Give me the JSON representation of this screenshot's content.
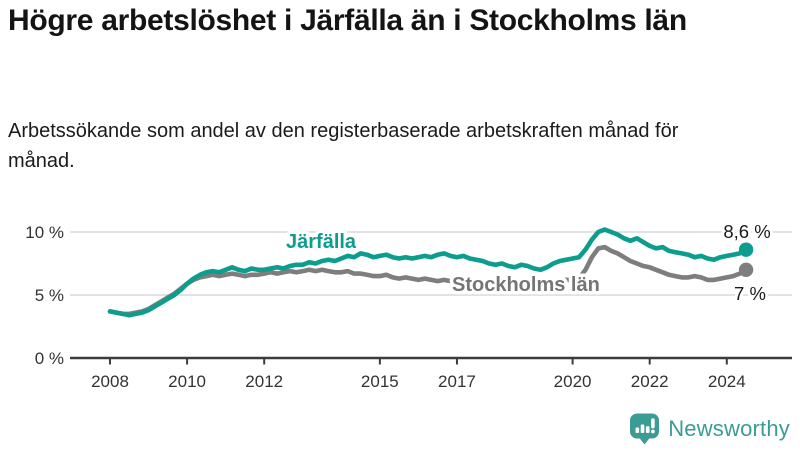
{
  "title": "Högre arbetslöshet i Järfälla än i Stockholms län",
  "subtitle": "Arbetssökande som andel av den registerbaserade arbetskraften månad för månad.",
  "branding": {
    "name": "Newsworthy",
    "icon": "bar-chart-bubble-icon",
    "color": "#3b9c94"
  },
  "colors": {
    "accent_teal": "#0d9d8f",
    "line_gray": "#7e7e7e",
    "label_gray": "#757575",
    "grid": "#d9d9d9",
    "axis": "#3c3c3c",
    "text": "#1a1a1a",
    "tick_text": "#333333"
  },
  "chart_data": {
    "type": "line",
    "title": "Högre arbetslöshet i Järfälla än i Stockholms län",
    "subtitle": "Arbetssökande som andel av den registerbaserade arbetskraften månad för månad.",
    "unit": "%",
    "x_start": 2008,
    "x_step_years": 0.16667,
    "x_end": 2024.5,
    "xticks": [
      2008,
      2010,
      2012,
      2015,
      2017,
      2020,
      2022,
      2024
    ],
    "yticks": [
      {
        "label": "0 %",
        "value": 0
      },
      {
        "label": "5 %",
        "value": 5
      },
      {
        "label": "10 %",
        "value": 10
      }
    ],
    "ylim": [
      0,
      11.8
    ],
    "grid": "horizontal",
    "legend": "inline-labels",
    "series": [
      {
        "name": "Järfälla",
        "color": "#0d9d8f",
        "label_color": "#0d9d8f",
        "end_label": "8,6 %",
        "end_value": 8.6,
        "values": [
          3.7,
          3.6,
          3.5,
          3.4,
          3.5,
          3.6,
          3.8,
          4.1,
          4.4,
          4.7,
          5.0,
          5.4,
          5.9,
          6.3,
          6.6,
          6.8,
          6.9,
          6.8,
          7.0,
          7.2,
          7.0,
          6.9,
          7.1,
          7.0,
          7.0,
          7.1,
          7.2,
          7.1,
          7.3,
          7.4,
          7.4,
          7.6,
          7.5,
          7.7,
          7.8,
          7.7,
          7.9,
          8.1,
          8.0,
          8.3,
          8.2,
          8.0,
          8.1,
          8.2,
          8.0,
          7.9,
          8.0,
          7.9,
          8.0,
          8.1,
          8.0,
          8.2,
          8.3,
          8.1,
          8.0,
          8.1,
          7.9,
          7.8,
          7.7,
          7.5,
          7.4,
          7.5,
          7.3,
          7.2,
          7.4,
          7.3,
          7.1,
          7.0,
          7.2,
          7.5,
          7.7,
          7.8,
          7.9,
          8.0,
          8.6,
          9.4,
          10.0,
          10.2,
          10.0,
          9.8,
          9.5,
          9.3,
          9.5,
          9.2,
          8.9,
          8.7,
          8.8,
          8.5,
          8.4,
          8.3,
          8.2,
          8.0,
          8.1,
          7.9,
          7.8,
          8.0,
          8.1,
          8.2,
          8.3,
          8.6
        ]
      },
      {
        "name": "Stockholms län",
        "color": "#7e7e7e",
        "label_color": "#757575",
        "end_label": "7 %",
        "end_value": 7.0,
        "values": [
          3.7,
          3.6,
          3.5,
          3.5,
          3.6,
          3.7,
          3.9,
          4.2,
          4.5,
          4.8,
          5.1,
          5.5,
          5.9,
          6.2,
          6.4,
          6.5,
          6.6,
          6.5,
          6.6,
          6.7,
          6.6,
          6.5,
          6.6,
          6.6,
          6.7,
          6.8,
          6.7,
          6.8,
          6.9,
          6.8,
          6.9,
          7.0,
          6.9,
          7.0,
          6.9,
          6.8,
          6.8,
          6.9,
          6.7,
          6.7,
          6.6,
          6.5,
          6.5,
          6.6,
          6.4,
          6.3,
          6.4,
          6.3,
          6.2,
          6.3,
          6.2,
          6.1,
          6.2,
          6.1,
          6.1,
          6.2,
          6.0,
          6.0,
          5.9,
          5.9,
          5.9,
          6.0,
          5.9,
          5.8,
          5.9,
          5.9,
          6.0,
          6.0,
          6.1,
          6.1,
          6.2,
          6.2,
          6.2,
          6.3,
          7.0,
          8.0,
          8.7,
          8.8,
          8.5,
          8.3,
          8.0,
          7.7,
          7.5,
          7.3,
          7.2,
          7.0,
          6.8,
          6.6,
          6.5,
          6.4,
          6.4,
          6.5,
          6.4,
          6.2,
          6.2,
          6.3,
          6.4,
          6.5,
          6.7,
          7.0
        ]
      }
    ]
  }
}
